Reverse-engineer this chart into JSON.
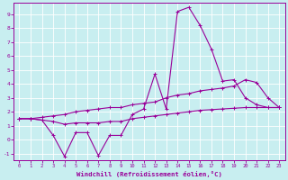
{
  "xlabel": "Windchill (Refroidissement éolien,°C)",
  "background_color": "#c8eef0",
  "grid_color": "#b0d8dc",
  "line_color": "#990099",
  "x": [
    0,
    1,
    2,
    3,
    4,
    5,
    6,
    7,
    8,
    9,
    10,
    11,
    12,
    13,
    14,
    15,
    16,
    17,
    18,
    19,
    20,
    21,
    22,
    23
  ],
  "y_main": [
    1.5,
    1.5,
    1.4,
    0.3,
    -1.2,
    0.5,
    0.5,
    -1.15,
    0.3,
    0.3,
    1.8,
    2.2,
    4.7,
    2.2,
    9.2,
    9.5,
    8.2,
    6.5,
    4.2,
    4.3,
    3.0,
    2.5,
    2.3,
    2.3
  ],
  "y_upper": [
    1.5,
    1.5,
    1.6,
    1.7,
    1.8,
    2.0,
    2.1,
    2.2,
    2.3,
    2.3,
    2.5,
    2.6,
    2.7,
    3.0,
    3.2,
    3.3,
    3.5,
    3.6,
    3.7,
    3.85,
    4.3,
    4.1,
    3.0,
    2.3
  ],
  "y_lower": [
    1.5,
    1.5,
    1.4,
    1.3,
    1.1,
    1.2,
    1.2,
    1.2,
    1.3,
    1.3,
    1.5,
    1.6,
    1.7,
    1.8,
    1.9,
    2.0,
    2.1,
    2.15,
    2.2,
    2.25,
    2.3,
    2.3,
    2.3,
    2.3
  ],
  "ylim": [
    -1.5,
    9.8
  ],
  "xlim": [
    -0.5,
    23.5
  ],
  "yticks": [
    -1,
    0,
    1,
    2,
    3,
    4,
    5,
    6,
    7,
    8,
    9
  ],
  "xticks": [
    0,
    1,
    2,
    3,
    4,
    5,
    6,
    7,
    8,
    9,
    10,
    11,
    12,
    13,
    14,
    15,
    16,
    17,
    18,
    19,
    20,
    21,
    22,
    23
  ]
}
